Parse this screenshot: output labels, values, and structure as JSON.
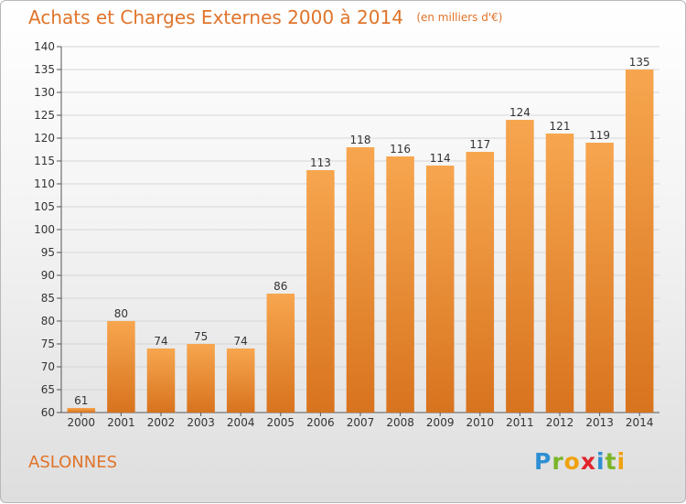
{
  "header": {
    "title": "Achats et Charges Externes 2000 à 2014",
    "unit": "(en milliers d'€)"
  },
  "footer": {
    "commune": "ASLONNES",
    "logo": [
      "P",
      "r",
      "o",
      "x",
      "i",
      "t",
      "i"
    ],
    "logo_colors": [
      "#2e8fd3",
      "#7ab527",
      "#f0a10d",
      "#e2242c",
      "#2e8fd3",
      "#7ab527",
      "#f0a10d"
    ]
  },
  "colors": {
    "bar_light": "#f7a64f",
    "bar_dark": "#d8731e",
    "text": "#e0742a"
  },
  "chart_data": {
    "type": "bar",
    "title": "Achats et Charges Externes 2000 à 2014",
    "subtitle": "(en milliers d'€)",
    "xlabel": "",
    "ylabel": "",
    "categories": [
      "2000",
      "2001",
      "2002",
      "2003",
      "2004",
      "2005",
      "2006",
      "2007",
      "2008",
      "2009",
      "2010",
      "2011",
      "2012",
      "2013",
      "2014"
    ],
    "values": [
      61,
      80,
      74,
      75,
      74,
      86,
      113,
      118,
      116,
      114,
      117,
      124,
      121,
      119,
      135
    ],
    "ylim": [
      60,
      140
    ],
    "yticks": [
      60,
      65,
      70,
      75,
      80,
      85,
      90,
      95,
      100,
      105,
      110,
      115,
      120,
      125,
      130,
      135,
      140
    ],
    "grid": true
  }
}
